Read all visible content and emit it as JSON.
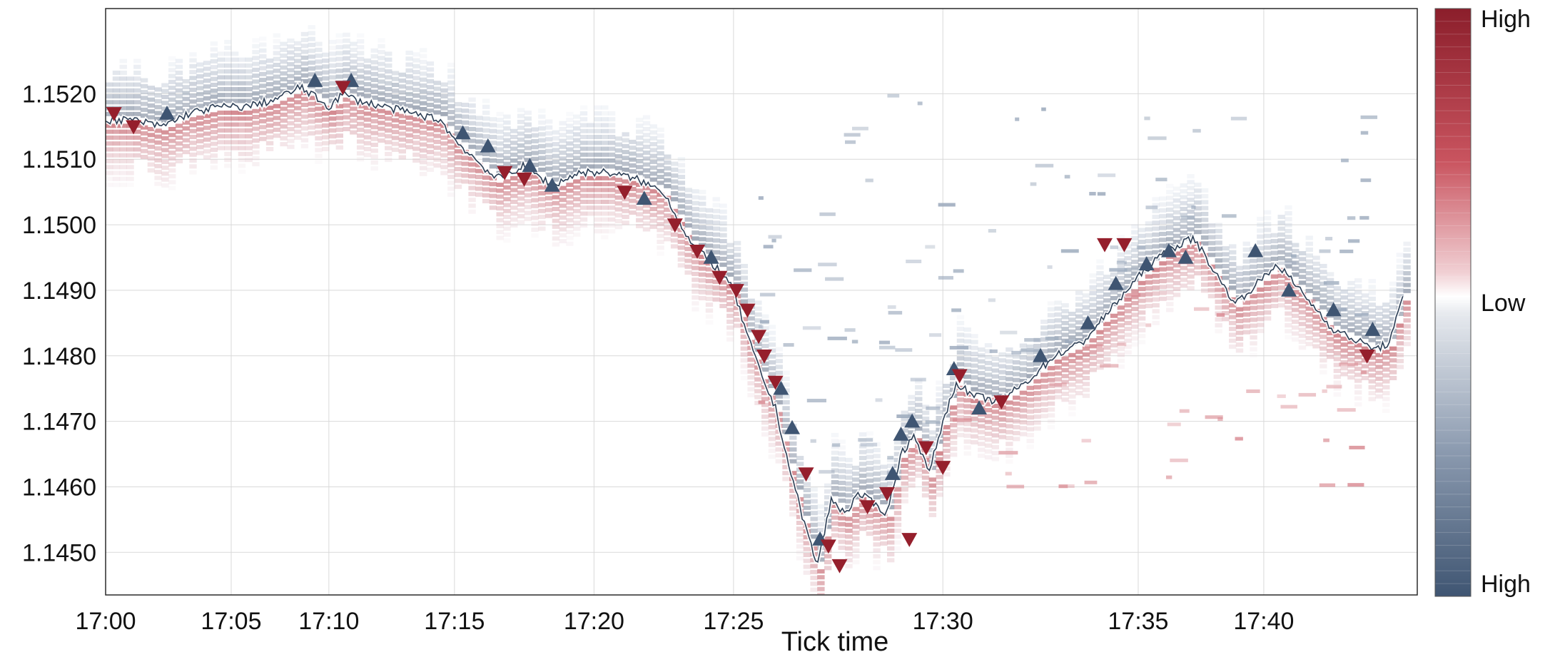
{
  "chart_data": {
    "type": "heatmap",
    "title": "",
    "xlabel": "Tick time",
    "ylabel": "",
    "grid": true,
    "x_tick_labels": [
      "17:00",
      "17:05",
      "17:10",
      "17:15",
      "17:20",
      "17:25",
      "17:30",
      "17:35",
      "17:40"
    ],
    "x_tick_minutes": [
      0,
      4.5,
      8.0,
      12.5,
      17.5,
      22.5,
      30.0,
      37.0,
      41.5
    ],
    "y_tick_labels": [
      "1.1520",
      "1.1510",
      "1.1500",
      "1.1490",
      "1.1480",
      "1.1470",
      "1.1460",
      "1.1450"
    ],
    "y_ticks": [
      1.152,
      1.151,
      1.15,
      1.149,
      1.148,
      1.147,
      1.146,
      1.145
    ],
    "xlim_minutes": [
      0,
      47
    ],
    "ylim": [
      1.14435,
      1.1533
    ],
    "colorbar": {
      "top_label": "High",
      "middle_label": "Low",
      "bottom_label": "High",
      "top_color": "#8b1e2b",
      "middle_color": "#ffffff",
      "bottom_color": "#3f5572"
    },
    "colors": {
      "ask_side": "#8ea0b6",
      "bid_side": "#c9545f",
      "uptick_marker": "#3f5572",
      "downtick_marker": "#951f2c",
      "price_line": "#2c3e55"
    },
    "price_path": {
      "minutes": [
        0,
        1,
        2,
        3,
        4,
        5,
        6,
        7,
        8,
        8.5,
        9,
        10,
        11,
        12,
        12.5,
        13,
        14,
        15,
        16,
        17,
        18,
        19,
        20,
        20.5,
        21,
        22,
        22.5,
        23,
        23.5,
        24,
        24.5,
        25,
        25.5,
        26,
        26.5,
        27,
        28,
        28.5,
        29,
        29.5,
        30,
        30.5,
        31,
        32,
        33,
        34,
        35,
        36,
        37,
        38,
        39,
        40,
        40.5,
        41,
        42,
        43,
        44,
        45,
        45.5,
        46,
        46.5
      ],
      "price": [
        1.1516,
        1.1516,
        1.1515,
        1.1517,
        1.1518,
        1.1518,
        1.1519,
        1.1521,
        1.1518,
        1.152,
        1.1519,
        1.1518,
        1.1517,
        1.1516,
        1.1513,
        1.1511,
        1.1507,
        1.1509,
        1.1506,
        1.1508,
        1.1508,
        1.1507,
        1.1505,
        1.1501,
        1.1497,
        1.1493,
        1.149,
        1.1483,
        1.1477,
        1.1472,
        1.1463,
        1.1455,
        1.1448,
        1.1458,
        1.1456,
        1.1459,
        1.1456,
        1.1465,
        1.1468,
        1.1462,
        1.147,
        1.1476,
        1.1474,
        1.1473,
        1.1476,
        1.148,
        1.1482,
        1.1487,
        1.1492,
        1.1496,
        1.1498,
        1.1491,
        1.1488,
        1.149,
        1.1494,
        1.1489,
        1.1484,
        1.1482,
        1.1481,
        1.1482,
        1.1489
      ]
    },
    "uptick_markers": [
      [
        2.2,
        1.1517
      ],
      [
        7.5,
        1.1522
      ],
      [
        8.8,
        1.1522
      ],
      [
        12.8,
        1.1514
      ],
      [
        13.7,
        1.1512
      ],
      [
        15.2,
        1.1509
      ],
      [
        16.0,
        1.1506
      ],
      [
        19.3,
        1.1504
      ],
      [
        21.7,
        1.1495
      ],
      [
        24.2,
        1.1475
      ],
      [
        24.6,
        1.1469
      ],
      [
        25.6,
        1.1452
      ],
      [
        28.2,
        1.1462
      ],
      [
        28.5,
        1.1468
      ],
      [
        28.9,
        1.147
      ],
      [
        30.4,
        1.1478
      ],
      [
        31.3,
        1.1472
      ],
      [
        33.5,
        1.148
      ],
      [
        35.2,
        1.1485
      ],
      [
        36.2,
        1.1491
      ],
      [
        37.3,
        1.1494
      ],
      [
        38.1,
        1.1496
      ],
      [
        38.7,
        1.1495
      ],
      [
        41.2,
        1.1496
      ],
      [
        42.4,
        1.149
      ],
      [
        44.0,
        1.1487
      ],
      [
        45.4,
        1.1484
      ]
    ],
    "downtick_markers": [
      [
        0.3,
        1.1517
      ],
      [
        1.0,
        1.1515
      ],
      [
        8.5,
        1.1521
      ],
      [
        14.3,
        1.1508
      ],
      [
        15.0,
        1.1507
      ],
      [
        18.6,
        1.1505
      ],
      [
        20.4,
        1.15
      ],
      [
        21.2,
        1.1496
      ],
      [
        22.0,
        1.1492
      ],
      [
        22.6,
        1.149
      ],
      [
        23.0,
        1.1487
      ],
      [
        23.4,
        1.1483
      ],
      [
        23.6,
        1.148
      ],
      [
        24.0,
        1.1476
      ],
      [
        25.1,
        1.1462
      ],
      [
        25.9,
        1.1451
      ],
      [
        26.3,
        1.1448
      ],
      [
        27.3,
        1.1457
      ],
      [
        28.0,
        1.1459
      ],
      [
        28.8,
        1.1452
      ],
      [
        29.4,
        1.1466
      ],
      [
        30.0,
        1.1463
      ],
      [
        30.6,
        1.1477
      ],
      [
        32.1,
        1.1473
      ],
      [
        35.8,
        1.1497
      ],
      [
        36.5,
        1.1497
      ],
      [
        45.2,
        1.148
      ]
    ]
  }
}
